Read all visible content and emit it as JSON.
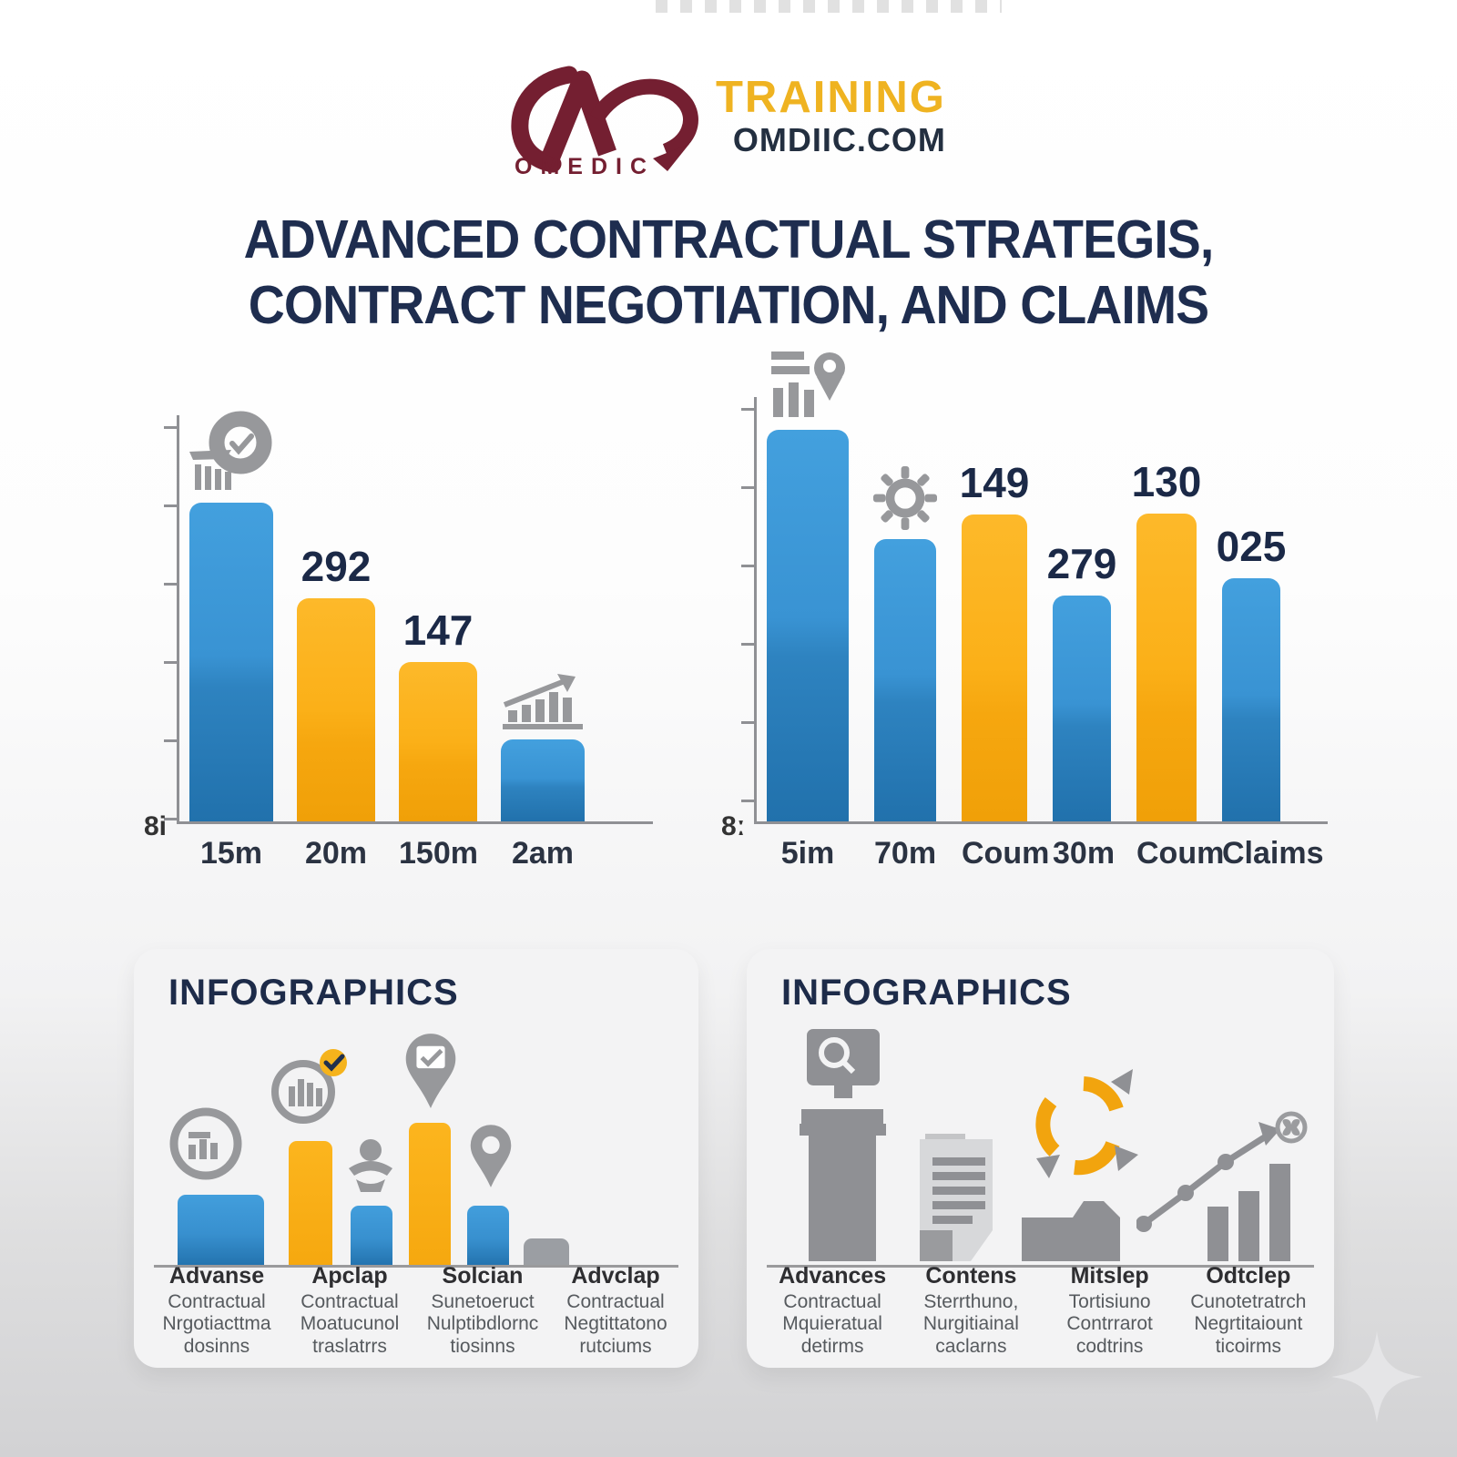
{
  "brand": {
    "logo_word": "OMEDIC",
    "brand_line1": "TRAINING",
    "brand_line2": "OMDIIC.COM",
    "colors": {
      "maroon": "#741f31",
      "gold": "#efb321",
      "navy": "#232f40"
    }
  },
  "title": {
    "line1": "ADVANCED CONTRACTUAL STRATEGIS,",
    "line2": "CONTRACT NEGOTIATION, AND CLAIMS"
  },
  "chart_data": [
    {
      "type": "bar",
      "title": "",
      "xlabel": "",
      "ylabel": "",
      "categories": [
        "15m",
        "20m",
        "150m",
        "2am"
      ],
      "values": [
        350,
        245,
        175,
        90
      ],
      "values_note": "relative bar heights in px; chart has no numeric axis scale",
      "data_labels": [
        "",
        "292",
        "147",
        ""
      ],
      "bar_colors": [
        "blue",
        "yellow",
        "yellow",
        "blue"
      ],
      "origin_label": "8i",
      "icons": [
        "chart-check-icon",
        "",
        "",
        "growth-trend-icon"
      ],
      "grid": false,
      "legend": null
    },
    {
      "type": "bar",
      "title": "",
      "xlabel": "",
      "ylabel": "",
      "categories": [
        "5im",
        "70m",
        "Coum",
        "30m",
        "Coum",
        "Claims"
      ],
      "values": [
        430,
        310,
        337,
        248,
        338,
        267
      ],
      "values_note": "relative bar heights in px; chart has no numeric axis scale",
      "data_labels": [
        "",
        "",
        "149",
        "279",
        "130",
        "025"
      ],
      "bar_colors": [
        "blue",
        "blue",
        "yellow",
        "blue",
        "yellow",
        "blue"
      ],
      "origin_label": "8ː",
      "icons": [
        "chart-pin-icon",
        "gear-icon",
        "",
        "",
        "",
        ""
      ],
      "grid": false,
      "legend": null
    }
  ],
  "palette": {
    "bar_blue_top": "#3e97d8",
    "bar_blue_bottom": "#2171ac",
    "bar_yellow_top": "#fcb51e",
    "bar_yellow_bottom": "#f0a008",
    "bar_gray": "#9b9ea3",
    "icon_gray": "#97989b",
    "axis_gray": "#8f9094",
    "panel_bg": "#f3f3f4",
    "text_navy": "#1c2b4a"
  },
  "panels": [
    {
      "title": "INFOGRAPHICS",
      "mini_bars": [
        78,
        137,
        66,
        157,
        66,
        30
      ],
      "mini_bar_colors": [
        "blue",
        "yellow",
        "blue",
        "yellow",
        "blue",
        "gray"
      ],
      "icons": [
        "ring-chart-icon",
        "chart-badge-icon",
        "person-icon",
        "pin-check-icon",
        "pin-circle-icon"
      ],
      "groups": [
        {
          "title": "Advanse",
          "lines": [
            "Contractual",
            "Nrgotiacttma",
            "dosinns"
          ]
        },
        {
          "title": "Apclap",
          "lines": [
            "Contractual",
            "Moatucunol",
            "traslatrrs"
          ]
        },
        {
          "title": "Solcian",
          "lines": [
            "Sunetoeruct",
            "Nulptibdlornc",
            "tiosinns"
          ]
        },
        {
          "title": "Advclap",
          "lines": [
            "Contractual",
            "Negtittatono",
            "rutciums"
          ]
        }
      ]
    },
    {
      "title": "INFOGRAPHICS",
      "icons": [
        "monitor-search-icon",
        "document-icon",
        "cycle-arrows-icon",
        "growth-line-icon",
        "butterfly-badge-icon"
      ],
      "groups": [
        {
          "title": "Advances",
          "lines": [
            "Contractual",
            "Mquieratual",
            "detirms"
          ]
        },
        {
          "title": "Contens",
          "lines": [
            "Sterrthuno,",
            "Nurgitiainal",
            "caclarns"
          ]
        },
        {
          "title": "Mitslep",
          "lines": [
            "Tortisiuno",
            "Contrrarot",
            "codtrins"
          ]
        },
        {
          "title": "Odtclep",
          "lines": [
            "Cunotetratrch",
            "Negrtitaiount",
            "ticoirms"
          ]
        }
      ]
    }
  ]
}
